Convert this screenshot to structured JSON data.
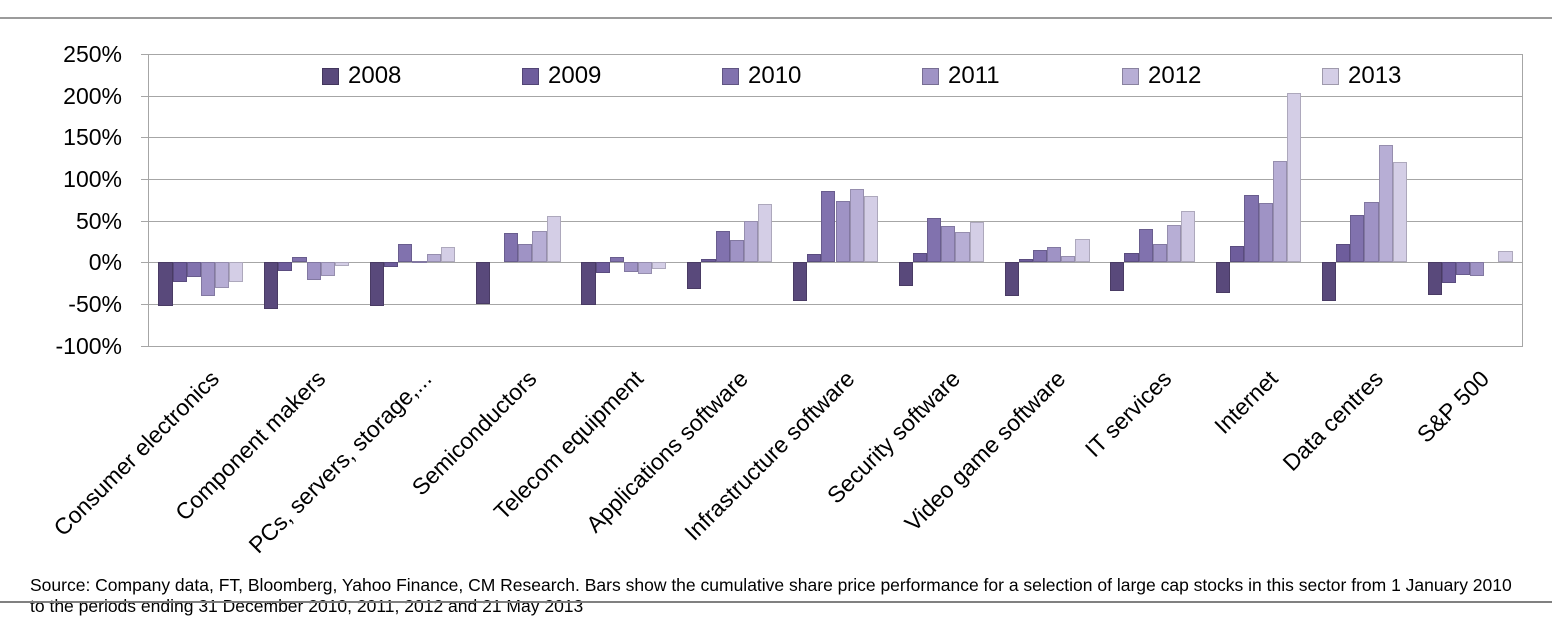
{
  "chart_data": {
    "type": "bar",
    "title": "",
    "categories": [
      "Consumer electronics",
      "Component makers",
      "PCs, servers, storage,...",
      "Semiconductors",
      "Telecom equipment",
      "Applications software",
      "Infrastructure software",
      "Security software",
      "Video game software",
      "IT services",
      "Internet",
      "Data centres",
      "S&P 500"
    ],
    "series": [
      {
        "name": "2008",
        "color": "#59497b",
        "values": [
          -52,
          -56,
          -53,
          -50,
          -51,
          -32,
          -47,
          -29,
          -40,
          -34,
          -37,
          -46,
          -39
        ]
      },
      {
        "name": "2009",
        "color": "#6e5d9c",
        "values": [
          -24,
          -10,
          -6,
          0,
          -13,
          4,
          10,
          11,
          4,
          11,
          19,
          22,
          -25
        ]
      },
      {
        "name": "2010",
        "color": "#8172ae",
        "values": [
          -18,
          6,
          22,
          35,
          6,
          38,
          85,
          53,
          15,
          40,
          81,
          57,
          -15
        ]
      },
      {
        "name": "2011",
        "color": "#9f93c5",
        "values": [
          -40,
          -21,
          2,
          22,
          -12,
          27,
          74,
          43,
          18,
          22,
          71,
          72,
          -16
        ]
      },
      {
        "name": "2012",
        "color": "#b7aed5",
        "values": [
          -31,
          -17,
          10,
          37,
          -14,
          49,
          88,
          36,
          7,
          45,
          121,
          141,
          0
        ]
      },
      {
        "name": "2013",
        "color": "#d4cee6",
        "values": [
          -24,
          -4,
          18,
          55,
          -8,
          70,
          80,
          48,
          28,
          61,
          203,
          120,
          14
        ]
      }
    ],
    "y_ticks": [
      "250%",
      "200%",
      "150%",
      "100%",
      "50%",
      "0%",
      "-50%",
      "-100%"
    ],
    "ylim": [
      -100,
      250
    ],
    "ytick_step": 50,
    "value_format": "percent",
    "grid": "horizontal",
    "legend_position": "top-inside",
    "source": "Source:  Company data, FT, Bloomberg, Yahoo Finance, CM Research. Bars show the cumulative share price performance for a selection of large cap stocks in this sector from 1 January 2010 to the periods ending 31 December 2010, 2011, 2012 and 21 May 2013"
  }
}
